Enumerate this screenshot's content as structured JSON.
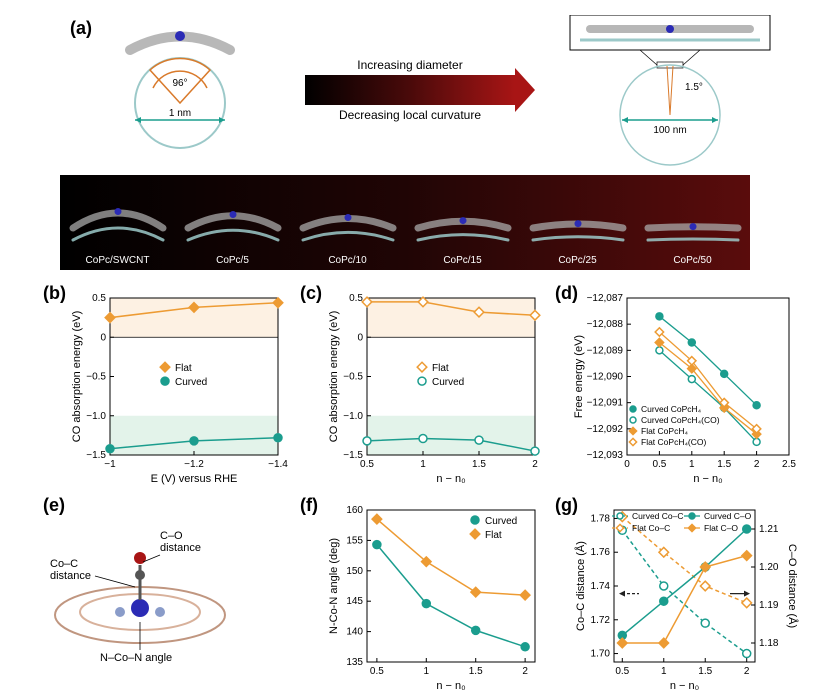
{
  "labels": {
    "a": "(a)",
    "b": "(b)",
    "c": "(c)",
    "d": "(d)",
    "e": "(e)",
    "f": "(f)",
    "g": "(g)"
  },
  "colors": {
    "flat": "#ed9b33",
    "curved": "#1b9d8e",
    "teal_dark": "#1b9d8e",
    "orange_dark": "#e37f1f",
    "bg_orange": "#fdf1e3",
    "bg_green": "#e3f3ea",
    "axis": "#000000",
    "arrow_indicator": "#222"
  },
  "panel_a": {
    "arrow_top": "Increasing diameter",
    "arrow_bottom": "Decreasing local curvature",
    "small_angle": "96°",
    "small_dia": "1 nm",
    "large_angle": "1.5°",
    "large_dia": "100 nm",
    "structures": [
      "CoPc/SWCNT",
      "CoPc/5",
      "CoPc/10",
      "CoPc/15",
      "CoPc/25",
      "CoPc/50"
    ]
  },
  "panel_b": {
    "xlabel": "E (V) versus RHE",
    "ylabel": "CO absorption energy (eV)",
    "xvals": [
      -1.0,
      -1.2,
      -1.4
    ],
    "yticks": [
      -1.5,
      -1.0,
      -0.5,
      0,
      0.5
    ],
    "ylim": [
      -1.5,
      0.5
    ],
    "series": [
      {
        "name": "Flat",
        "color": "#ed9b33",
        "marker": "diamond",
        "y": [
          0.25,
          0.38,
          0.44
        ],
        "filled": true
      },
      {
        "name": "Curved",
        "color": "#1b9d8e",
        "marker": "circle",
        "y": [
          -1.42,
          -1.32,
          -1.28
        ],
        "filled": true
      }
    ]
  },
  "panel_c": {
    "xlabel": "n − n₀",
    "ylabel": "CO absorption energy (eV)",
    "xvals": [
      0.5,
      1.0,
      1.5,
      2.0
    ],
    "yticks": [
      -1.5,
      -1.0,
      -0.5,
      0,
      0.5
    ],
    "ylim": [
      -1.5,
      0.5
    ],
    "series": [
      {
        "name": "Flat",
        "color": "#ed9b33",
        "marker": "diamond",
        "y": [
          0.45,
          0.45,
          0.32,
          0.28
        ],
        "filled": false
      },
      {
        "name": "Curved",
        "color": "#1b9d8e",
        "marker": "circle",
        "y": [
          -1.32,
          -1.29,
          -1.31,
          -1.45
        ],
        "filled": false
      }
    ]
  },
  "panel_d": {
    "xlabel": "n − n₀",
    "ylabel": "Free energy (eV)",
    "xvals": [
      0.5,
      1.0,
      1.5,
      2.0
    ],
    "xticks": [
      0,
      0.5,
      1.0,
      1.5,
      2.0,
      2.5
    ],
    "yticks": [
      -12093,
      -12092,
      -12091,
      -12090,
      -12089,
      -12088,
      -12087
    ],
    "ytick_labels": [
      "−12,093",
      "−12,092",
      "−12,091",
      "−12,090",
      "−12,089",
      "−12,088",
      "−12,087"
    ],
    "ylim": [
      -12093,
      -12087
    ],
    "series": [
      {
        "name": "Curved CoPcH₄",
        "color": "#1b9d8e",
        "marker": "circle",
        "filled": true,
        "y": [
          -12087.7,
          -12088.7,
          -12089.9,
          -12091.1
        ]
      },
      {
        "name": "Curved CoPcH₄(CO)",
        "color": "#1b9d8e",
        "marker": "circle",
        "filled": false,
        "y": [
          -12089.0,
          -12090.1,
          -12091.2,
          -12092.5
        ]
      },
      {
        "name": "Flat CoPcH₄",
        "color": "#ed9b33",
        "marker": "diamond",
        "filled": true,
        "y": [
          -12088.7,
          -12089.7,
          -12091.2,
          -12092.2
        ]
      },
      {
        "name": "Flat CoPcH₄(CO)",
        "color": "#ed9b33",
        "marker": "diamond",
        "filled": false,
        "y": [
          -12088.3,
          -12089.4,
          -12091.0,
          -12092.0
        ]
      }
    ]
  },
  "panel_e": {
    "co_dist": "C–O\ndistance",
    "coc_dist": "Co–C\ndistance",
    "ncn": "N–Co–N angle"
  },
  "panel_f": {
    "xlabel": "n − n₀",
    "ylabel": "N-Co-N angle (deg)",
    "xvals": [
      0.5,
      1.0,
      1.5,
      2.0
    ],
    "yticks": [
      135,
      140,
      145,
      150,
      155,
      160
    ],
    "ylim": [
      135,
      160
    ],
    "series": [
      {
        "name": "Curved",
        "color": "#1b9d8e",
        "marker": "circle",
        "y": [
          154.3,
          144.6,
          140.2,
          137.5
        ],
        "filled": true
      },
      {
        "name": "Flat",
        "color": "#ed9b33",
        "marker": "diamond",
        "y": [
          158.5,
          151.5,
          146.5,
          146.0
        ],
        "filled": true
      }
    ]
  },
  "panel_g": {
    "xlabel": "n − n₀",
    "ylabel_left": "Co–C distance (Å)",
    "ylabel_right": "C–O distance (Å)",
    "xvals": [
      0.5,
      1.0,
      1.5,
      2.0
    ],
    "yticks_left": [
      1.7,
      1.72,
      1.74,
      1.76,
      1.78
    ],
    "ylim_left": [
      1.695,
      1.785
    ],
    "yticks_right": [
      1.18,
      1.19,
      1.2,
      1.21
    ],
    "ylim_right": [
      1.175,
      1.215
    ],
    "series_left": [
      {
        "name": "Curved Co–C",
        "color": "#1b9d8e",
        "marker": "circle",
        "filled": false,
        "dash": true,
        "y": [
          1.773,
          1.74,
          1.718,
          1.7
        ]
      },
      {
        "name": "Flat Co–C",
        "color": "#ed9b33",
        "marker": "diamond",
        "filled": false,
        "dash": true,
        "y": [
          1.781,
          1.76,
          1.74,
          1.73
        ]
      }
    ],
    "series_right": [
      {
        "name": "Curved C–O",
        "color": "#1b9d8e",
        "marker": "circle",
        "filled": true,
        "dash": false,
        "y": [
          1.182,
          1.191,
          1.2,
          1.21
        ]
      },
      {
        "name": "Flat C–O",
        "color": "#ed9b33",
        "marker": "diamond",
        "filled": true,
        "dash": false,
        "y": [
          1.18,
          1.18,
          1.2,
          1.203
        ]
      }
    ]
  }
}
